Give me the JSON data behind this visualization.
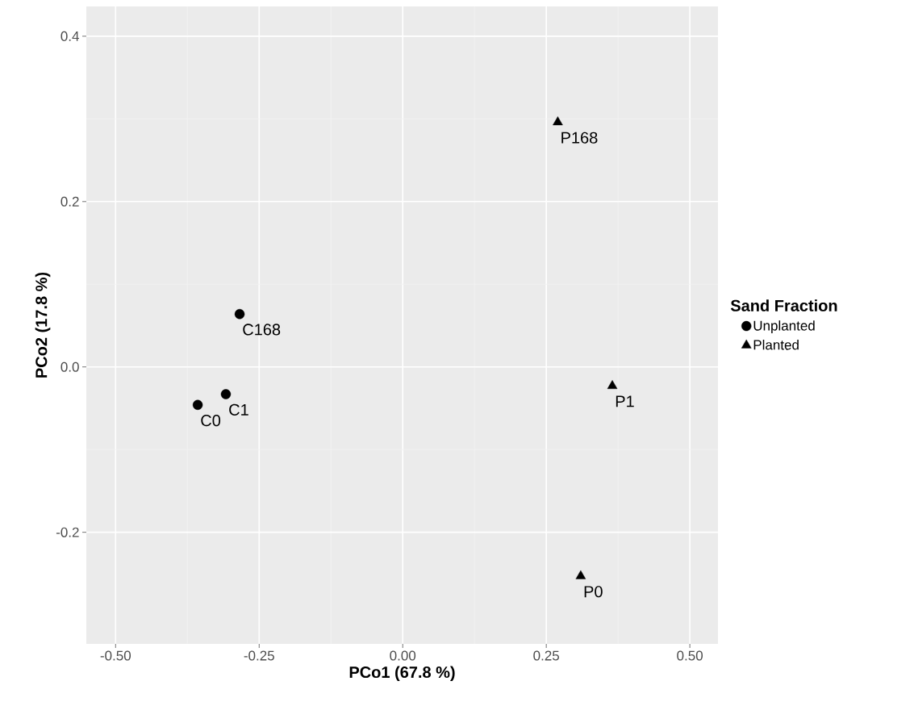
{
  "chart_data": {
    "type": "scatter",
    "xlabel": "PCo1 (67.8 %)",
    "ylabel": "PCo2 (17.8 %)",
    "legend_title": "Sand Fraction",
    "series": [
      {
        "name": "Unplanted",
        "color": "#000000",
        "marker": "circle",
        "x": [
          -0.357,
          -0.308,
          -0.284
        ],
        "values": [
          -0.046,
          -0.033,
          0.064
        ]
      },
      {
        "name": "Planted",
        "color": "#000000",
        "marker": "triangle",
        "x": [
          0.27,
          0.365,
          0.31
        ],
        "values": [
          0.296,
          -0.023,
          -0.253
        ]
      }
    ],
    "annotations": [
      {
        "text": "C0",
        "x": -0.357,
        "y": -0.046
      },
      {
        "text": "C1",
        "x": -0.308,
        "y": -0.033
      },
      {
        "text": "C168",
        "x": -0.284,
        "y": 0.064
      },
      {
        "text": "P168",
        "x": 0.27,
        "y": 0.296
      },
      {
        "text": "P1",
        "x": 0.365,
        "y": -0.023
      },
      {
        "text": "P0",
        "x": 0.31,
        "y": -0.253
      }
    ],
    "xlim": [
      -0.551,
      0.549
    ],
    "ylim": [
      -0.335,
      0.436
    ],
    "xticks": [
      {
        "value": -0.5,
        "label": "-0.50"
      },
      {
        "value": -0.25,
        "label": "-0.25"
      },
      {
        "value": 0,
        "label": "0.00"
      },
      {
        "value": 0.25,
        "label": "0.25"
      },
      {
        "value": 0.5,
        "label": "0.50"
      }
    ],
    "yticks": [
      {
        "value": -0.2,
        "label": "-0.2"
      },
      {
        "value": 0,
        "label": "0.0"
      },
      {
        "value": 0.2,
        "label": "0.2"
      },
      {
        "value": 0.4,
        "label": "0.4"
      }
    ],
    "grid": true,
    "legend": "right"
  }
}
